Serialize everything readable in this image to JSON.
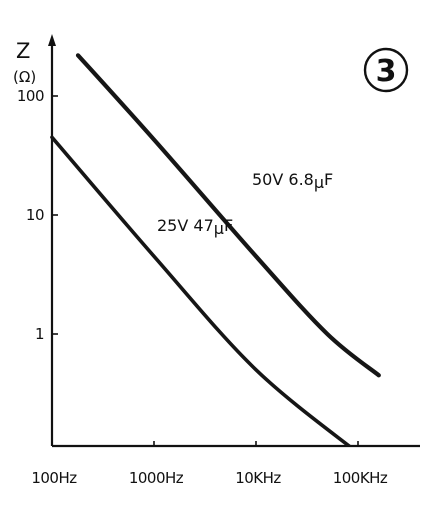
{
  "chart_data": {
    "type": "line",
    "badge": "3",
    "ylabel": "Z",
    "ylabel_unit": "(Ω)",
    "xscale": "log",
    "yscale": "log",
    "xlim": [
      100,
      160000
    ],
    "ylim": [
      0.1,
      200
    ],
    "x_ticks": [
      {
        "value": 100,
        "label": "100Hz"
      },
      {
        "value": 1000,
        "label": "1000Hz"
      },
      {
        "value": 10000,
        "label": "10KHz"
      },
      {
        "value": 100000,
        "label": "100KHz"
      }
    ],
    "y_ticks": [
      {
        "value": 100,
        "label": "100"
      },
      {
        "value": 10,
        "label": "10"
      },
      {
        "value": 1,
        "label": "1"
      }
    ],
    "grid": false,
    "series": [
      {
        "name": "50V 6.8μF",
        "label_parts": [
          "50V 6.8",
          "μ",
          "F"
        ],
        "x": [
          180,
          1000,
          10000,
          50000,
          160000
        ],
        "y": [
          220,
          43,
          4.5,
          1.0,
          0.45
        ]
      },
      {
        "name": "25V 47μF",
        "label_parts": [
          "25V 47",
          "μ",
          "F"
        ],
        "x": [
          100,
          1000,
          10000,
          100000
        ],
        "y": [
          45,
          4.5,
          0.5,
          0.1
        ]
      }
    ]
  }
}
